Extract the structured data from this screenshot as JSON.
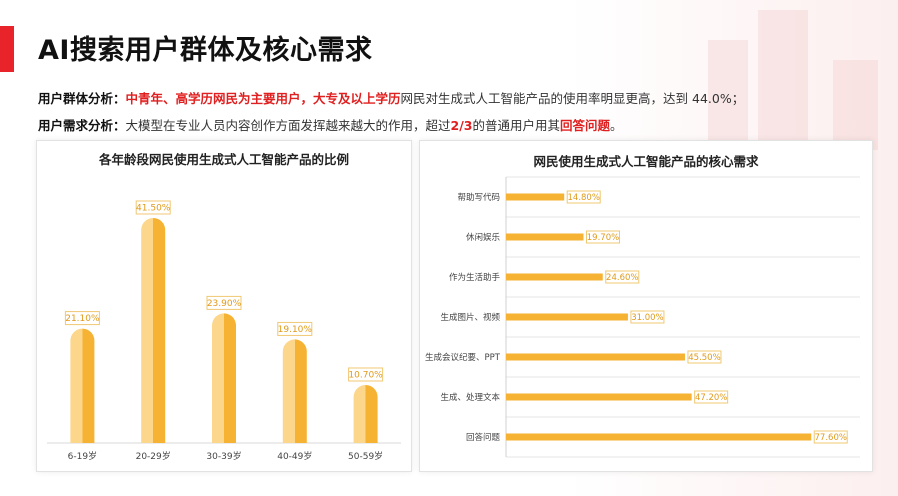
{
  "page": {
    "title": "AI搜索用户群体及核心需求",
    "line1": {
      "label": "用户群体分析：",
      "hl1": "中青年、高学历网民为主要用户，",
      "hl2": "大专及以上学历",
      "rest": "网民对生成式人工智能产品的使用率明显更高，达到 44.0%；"
    },
    "line2": {
      "label": "用户需求分析：",
      "text1": "大模型在专业人员内容创作方面发挥越来越大的作用，超过",
      "hl1": "2/3",
      "text2": "的普通用户用其",
      "hl2": "回答问题",
      "text3": "。"
    }
  },
  "colors": {
    "accent_red": "#e8242a",
    "bar_orange": "#f6b233",
    "bar_light": "#fcd68a",
    "label_border": "#f0c873",
    "label_text": "#e09a1c"
  },
  "chart_data": [
    {
      "type": "bar",
      "title": "各年龄段网民使用生成式人工智能产品的比例",
      "categories": [
        "6-19岁",
        "20-29岁",
        "30-39岁",
        "40-49岁",
        "50-59岁"
      ],
      "values": [
        21.1,
        41.5,
        23.9,
        19.1,
        10.7
      ],
      "data_labels": [
        "21.10%",
        "41.50%",
        "23.90%",
        "19.10%",
        "10.70%"
      ],
      "ylim": [
        0,
        45
      ],
      "grid": false
    },
    {
      "type": "bar",
      "orientation": "horizontal",
      "title": "网民使用生成式人工智能产品的核心需求",
      "categories": [
        "帮助写代码",
        "休闲娱乐",
        "作为生活助手",
        "生成图片、视频",
        "生成会议纪要、PPT",
        "生成、处理文本",
        "回答问题"
      ],
      "values": [
        14.8,
        19.7,
        24.6,
        31.0,
        45.5,
        47.2,
        77.6
      ],
      "data_labels": [
        "14.80%",
        "19.70%",
        "24.60%",
        "31.00%",
        "45.50%",
        "47.20%",
        "77.60%"
      ],
      "xlim": [
        0,
        90
      ],
      "grid": true
    }
  ]
}
